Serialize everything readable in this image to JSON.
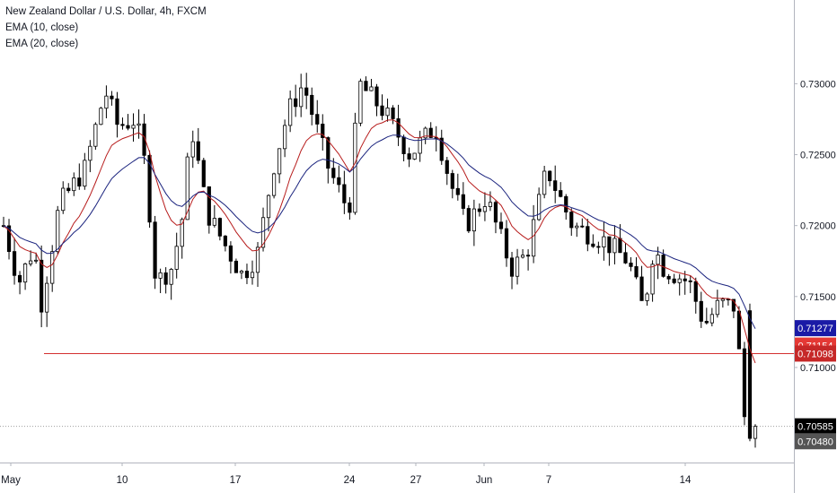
{
  "chart_data": {
    "type": "candlestick",
    "title": "New Zealand Dollar / U.S. Dollar, 4h, FXCM",
    "indicators": [
      {
        "name": "EMA (10, close)",
        "color": "#c62828"
      },
      {
        "name": "EMA (20, close)",
        "color": "#1a237e"
      }
    ],
    "y_axis": {
      "ticks": [
        "0.73000",
        "0.72500",
        "0.72000",
        "0.71500",
        "0.71000"
      ],
      "tick_values": [
        0.73,
        0.725,
        0.72,
        0.715,
        0.71
      ],
      "range": [
        0.7033,
        0.7359
      ],
      "position": "right"
    },
    "x_axis": {
      "ticks": [
        "May",
        "10",
        "17",
        "24",
        "27",
        "Jun",
        "7",
        "14"
      ]
    },
    "price_labels": [
      {
        "text": "0.71277",
        "value": 0.71277,
        "color": "#1a1aa6",
        "series": "EMA 20"
      },
      {
        "text": "0.71154",
        "value": 0.71154,
        "color": "#e53935",
        "series": "EMA 10"
      },
      {
        "text": "0.71098",
        "value": 0.71098,
        "color": "#c62828",
        "series": "horizontal line"
      },
      {
        "text": "0.70585",
        "value": 0.70585,
        "color": "#000000",
        "series": "last price"
      },
      {
        "text": "0.70480",
        "value": 0.7048,
        "color": "#555555",
        "series": "current"
      }
    ],
    "horizontal_line": {
      "value": 0.71098,
      "color": "#d32f2f"
    },
    "dotted_line": {
      "value": 0.70585
    },
    "candle_count": 140,
    "close_waypoints": [
      [
        0,
        0.72
      ],
      [
        6,
        0.716
      ],
      [
        12,
        0.7185
      ],
      [
        15,
        0.7145
      ],
      [
        22,
        0.7215
      ],
      [
        32,
        0.724
      ],
      [
        40,
        0.7295
      ],
      [
        45,
        0.727
      ],
      [
        52,
        0.7275
      ],
      [
        56,
        0.724
      ],
      [
        60,
        0.716
      ],
      [
        66,
        0.717
      ],
      [
        70,
        0.72
      ],
      [
        74,
        0.727
      ],
      [
        80,
        0.721
      ],
      [
        86,
        0.719
      ],
      [
        94,
        0.7165
      ],
      [
        100,
        0.718
      ],
      [
        106,
        0.724
      ],
      [
        112,
        0.728
      ],
      [
        118,
        0.73
      ],
      [
        128,
        0.724
      ],
      [
        136,
        0.721
      ],
      [
        140,
        0.73
      ],
      [
        150,
        0.728
      ],
      [
        160,
        0.725
      ],
      [
        170,
        0.727
      ],
      [
        176,
        0.723
      ],
      [
        182,
        0.72
      ],
      [
        190,
        0.722
      ],
      [
        200,
        0.717
      ],
      [
        206,
        0.718
      ],
      [
        214,
        0.724
      ],
      [
        224,
        0.72
      ],
      [
        236,
        0.719
      ],
      [
        246,
        0.7175
      ],
      [
        252,
        0.714
      ],
      [
        256,
        0.7185
      ],
      [
        260,
        0.717
      ],
      [
        270,
        0.716
      ],
      [
        276,
        0.713
      ],
      [
        282,
        0.7145
      ],
      [
        288,
        0.7143
      ],
      [
        292,
        0.706
      ],
      [
        296,
        0.705
      ]
    ],
    "ema_colors": {
      "ema10": "#b71c1c",
      "ema20": "#1a237e"
    }
  }
}
